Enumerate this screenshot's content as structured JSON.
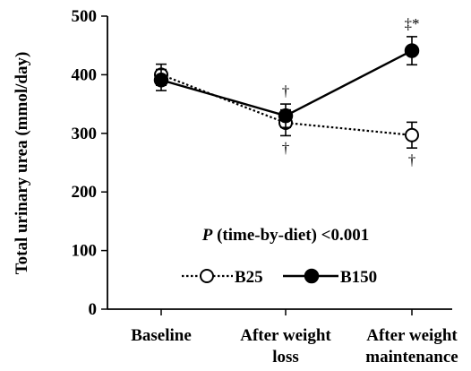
{
  "chart_data": {
    "type": "line",
    "title": "",
    "xlabel": "",
    "ylabel": "Total urinary urea (mmol/day)",
    "ylim": [
      0,
      500
    ],
    "yticks": [
      0,
      100,
      200,
      300,
      400,
      500
    ],
    "categories": [
      [
        "Baseline"
      ],
      [
        "After weight",
        "loss"
      ],
      [
        "After weight",
        "maintenance"
      ]
    ],
    "series": [
      {
        "name": "B25",
        "marker": "open-circle",
        "line_style": "dotted",
        "values": [
          400,
          318,
          297
        ],
        "error": [
          18,
          22,
          22
        ],
        "significance": [
          "",
          "†",
          "†"
        ]
      },
      {
        "name": "B150",
        "marker": "filled-circle",
        "line_style": "solid",
        "values": [
          391,
          330,
          441
        ],
        "error": [
          18,
          20,
          24
        ],
        "significance": [
          "",
          "†",
          "‡*"
        ]
      }
    ],
    "annotation": {
      "italic": "P",
      "text": " (time-by-diet) <0.001"
    },
    "legend_position": "center",
    "grid": false,
    "colors": {
      "series": "#000000",
      "open_fill": "#ffffff"
    }
  }
}
